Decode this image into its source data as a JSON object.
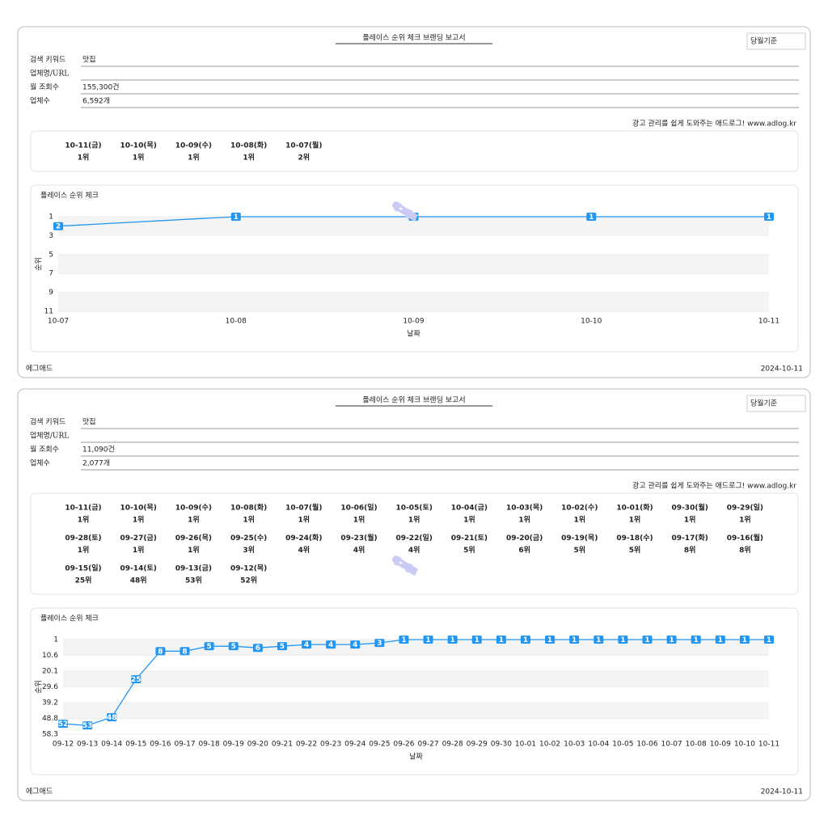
{
  "watermark": "에그애드",
  "reports": [
    {
      "title": "플레이스 순위 체크 브랜딩 보고서",
      "basis": "당월기준",
      "fields": [
        {
          "label": "검색 키워드",
          "value": "맛집"
        },
        {
          "label": "업체명/URL"
        },
        {
          "label": "월 조회수",
          "value": "155,300건"
        },
        {
          "label": "업체수",
          "value": "6,592개"
        }
      ],
      "link": "광고 관리를 쉽게 도와주는 애드로그! www.adlog.kr",
      "days": [
        {
          "date": "10-11(금)",
          "rank": "1위",
          "color": "#1a1acc"
        },
        {
          "date": "10-10(목)",
          "rank": "1위",
          "color": "#1a1acc"
        },
        {
          "date": "10-09(수)",
          "rank": "1위",
          "color": "#1a1acc"
        },
        {
          "date": "10-08(화)",
          "rank": "1위",
          "color": "#1a1acc"
        },
        {
          "date": "10-07(월)",
          "rank": "2위",
          "color": "#1a1acc"
        }
      ],
      "chart": {
        "type": "line",
        "title": "플레이스 순위 체크",
        "xlabel": "날짜",
        "ylabel": "순위",
        "color": "#2196f3",
        "x": [
          "10-07",
          "10-08",
          "10-09",
          "10-10",
          "10-11"
        ],
        "values": [
          2,
          1,
          1,
          1,
          1
        ],
        "ylim": [
          1,
          11
        ],
        "yticks": [
          1,
          3,
          5,
          7,
          9,
          11
        ],
        "inverted": true
      },
      "footer_left": "에그애드",
      "footer_right": "2024-10-11"
    },
    {
      "title": "플레이스 순위 체크 브랜딩 보고서",
      "basis": "당월기준",
      "fields": [
        {
          "label": "검색 키워드",
          "value": "맛집"
        },
        {
          "label": "업체명/URL"
        },
        {
          "label": "월 조회수",
          "value": "11,090건"
        },
        {
          "label": "업체수",
          "value": "2,077개"
        }
      ],
      "link": "광고 관리를 쉽게 도와주는 애드로그! www.adlog.kr",
      "days": [
        {
          "date": "10-11(금)",
          "rank": "1위",
          "color": "#1a1acc"
        },
        {
          "date": "10-10(목)",
          "rank": "1위",
          "color": "#1a1acc"
        },
        {
          "date": "10-09(수)",
          "rank": "1위",
          "color": "#1a1acc"
        },
        {
          "date": "10-08(화)",
          "rank": "1위",
          "color": "#1a1acc"
        },
        {
          "date": "10-07(월)",
          "rank": "1위",
          "color": "#1a1acc"
        },
        {
          "date": "10-06(일)",
          "rank": "1위",
          "color": "#1a1acc"
        },
        {
          "date": "10-05(토)",
          "rank": "1위",
          "color": "#1a1acc"
        },
        {
          "date": "10-04(금)",
          "rank": "1위",
          "color": "#1a1acc"
        },
        {
          "date": "10-03(목)",
          "rank": "1위",
          "color": "#1a1acc"
        },
        {
          "date": "10-02(수)",
          "rank": "1위",
          "color": "#1a1acc"
        },
        {
          "date": "10-01(화)",
          "rank": "1위",
          "color": "#1a1acc"
        },
        {
          "date": "09-30(월)",
          "rank": "1위",
          "color": "#1a1acc"
        },
        {
          "date": "09-29(일)",
          "rank": "1위",
          "color": "#1a1acc"
        },
        {
          "date": "09-28(토)",
          "rank": "1위",
          "color": "#1a1acc"
        },
        {
          "date": "09-27(금)",
          "rank": "1위",
          "color": "#1a1acc"
        },
        {
          "date": "09-26(목)",
          "rank": "1위",
          "color": "#1a1acc"
        },
        {
          "date": "09-25(수)",
          "rank": "3위",
          "color": "#1a1acc"
        },
        {
          "date": "09-24(화)",
          "rank": "4위",
          "color": "#1a1acc"
        },
        {
          "date": "09-23(월)",
          "rank": "4위",
          "color": "#1a1acc"
        },
        {
          "date": "09-22(일)",
          "rank": "4위",
          "color": "#1a1acc"
        },
        {
          "date": "09-21(토)",
          "rank": "5위",
          "color": "#1a1acc"
        },
        {
          "date": "09-20(금)",
          "rank": "6위",
          "color": "#e01010"
        },
        {
          "date": "09-19(목)",
          "rank": "5위",
          "color": "#1a1acc"
        },
        {
          "date": "09-18(수)",
          "rank": "5위",
          "color": "#1a1acc"
        },
        {
          "date": "09-17(화)",
          "rank": "8위",
          "color": "#e01010"
        },
        {
          "date": "09-16(월)",
          "rank": "8위",
          "color": "#e01010"
        },
        {
          "date": "09-15(일)",
          "rank": "25위",
          "color": "#222222"
        },
        {
          "date": "09-14(토)",
          "rank": "48위",
          "color": "#222222"
        },
        {
          "date": "09-13(금)",
          "rank": "53위",
          "color": "#222222"
        },
        {
          "date": "09-12(목)",
          "rank": "52위",
          "color": "#222222"
        }
      ],
      "chart": {
        "type": "line",
        "title": "플레이스 순위 체크",
        "xlabel": "날짜",
        "ylabel": "순위",
        "color": "#2196f3",
        "x": [
          "09-12",
          "09-13",
          "09-14",
          "09-15",
          "09-16",
          "09-17",
          "09-18",
          "09-19",
          "09-20",
          "09-21",
          "09-22",
          "09-23",
          "09-24",
          "09-25",
          "09-26",
          "09-27",
          "09-28",
          "09-29",
          "09-30",
          "10-01",
          "10-02",
          "10-03",
          "10-04",
          "10-05",
          "10-06",
          "10-07",
          "10-08",
          "10-09",
          "10-10",
          "10-11"
        ],
        "values": [
          52,
          53,
          48,
          25,
          8,
          8,
          5,
          5,
          6,
          5,
          4,
          4,
          4,
          3,
          1,
          1,
          1,
          1,
          1,
          1,
          1,
          1,
          1,
          1,
          1,
          1,
          1,
          1,
          1,
          1
        ],
        "ylim": [
          1,
          58.3
        ],
        "yticks": [
          1,
          10.6,
          20.1,
          29.6,
          39.2,
          48.8,
          58.3
        ],
        "inverted": true
      },
      "footer_left": "에그애드",
      "footer_right": "2024-10-11"
    }
  ]
}
